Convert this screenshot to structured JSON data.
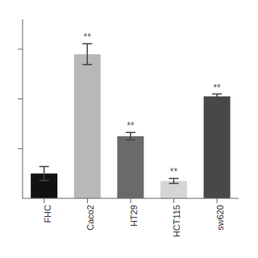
{
  "chart_data": {
    "type": "bar",
    "categories": [
      "FHC",
      "Caco2",
      "HT29",
      "HCT115",
      "sw620"
    ],
    "values": [
      1.0,
      5.8,
      2.5,
      0.7,
      4.1
    ],
    "errors": [
      0.28,
      0.42,
      0.15,
      0.1,
      0.1
    ],
    "colors": [
      "#111111",
      "#b8b8b8",
      "#6a6a6a",
      "#d5d5d5",
      "#484848"
    ],
    "annotations": [
      null,
      "**",
      "**",
      "**",
      "**"
    ],
    "ylim": [
      0,
      7.2
    ],
    "yticks": [
      2,
      4,
      6
    ],
    "tick_labels": "x"
  }
}
